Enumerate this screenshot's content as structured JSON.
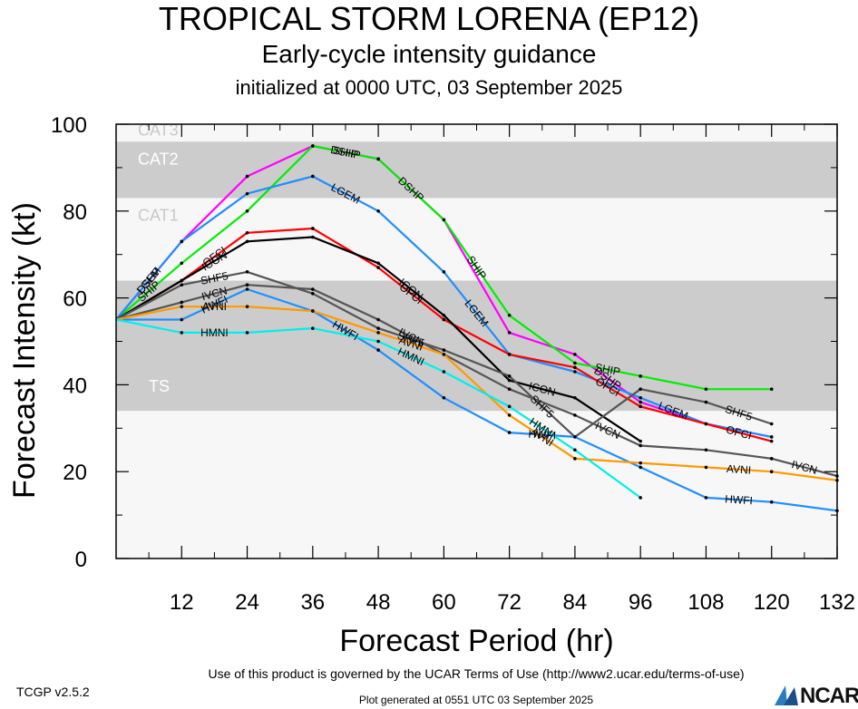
{
  "chart_data": {
    "type": "line",
    "title": "TROPICAL STORM LORENA (EP12)",
    "subtitle": "Early-cycle intensity guidance",
    "subtitle2": "initialized at 0000 UTC, 03 September 2025",
    "xlabel": "Forecast Period (hr)",
    "ylabel": "Forecast Intensity (kt)",
    "xlim": [
      0,
      132
    ],
    "ylim": [
      0,
      100
    ],
    "xticks": [
      12,
      24,
      36,
      48,
      60,
      72,
      84,
      96,
      108,
      120,
      132
    ],
    "yticks": [
      0,
      20,
      40,
      60,
      80,
      100
    ],
    "bands": [
      {
        "label": "TS",
        "from": 34,
        "to": 64,
        "color": "#cccccc"
      },
      {
        "label": "CAT1",
        "from": 64,
        "to": 83,
        "color": "#f7f7f7"
      },
      {
        "label": "CAT2",
        "from": 83,
        "to": 96,
        "color": "#cccccc"
      },
      {
        "label": "CAT3",
        "from": 96,
        "to": 100,
        "color": "#f7f7f7"
      }
    ],
    "below_band_color": "#f7f7f7",
    "series": [
      {
        "name": "DSHP",
        "color": "#ff00ff",
        "x": [
          0,
          12,
          24,
          36,
          48,
          60,
          72,
          84,
          96,
          108,
          120
        ],
        "y": [
          55,
          73,
          88,
          95,
          92,
          78,
          52,
          47,
          36,
          31,
          28
        ]
      },
      {
        "name": "SHIP",
        "color": "#00ee00",
        "x": [
          0,
          12,
          24,
          36,
          48,
          60,
          72,
          84,
          96,
          108,
          120
        ],
        "y": [
          55,
          68,
          80,
          95,
          92,
          78,
          56,
          45,
          42,
          39,
          39
        ]
      },
      {
        "name": "LGEM",
        "color": "#1e8fff",
        "x": [
          0,
          12,
          24,
          36,
          48,
          60,
          72,
          84,
          96,
          108,
          120
        ],
        "y": [
          55,
          73,
          84,
          88,
          80,
          66,
          47,
          43,
          37,
          31,
          28
        ]
      },
      {
        "name": "OFCI",
        "color": "#ff0000",
        "x": [
          0,
          12,
          24,
          36,
          48,
          60,
          72,
          84,
          96,
          108,
          120
        ],
        "y": [
          55,
          64,
          75,
          76,
          67,
          55,
          47,
          44,
          35,
          31,
          27
        ]
      },
      {
        "name": "ICON",
        "color": "#000000",
        "x": [
          0,
          12,
          24,
          36,
          48,
          60,
          72,
          84,
          96
        ],
        "y": [
          55,
          64,
          73,
          74,
          68,
          56,
          41,
          37,
          27
        ]
      },
      {
        "name": "SHF5",
        "color": "#555555",
        "x": [
          0,
          12,
          24,
          36,
          48,
          60,
          72,
          84,
          96,
          108,
          120
        ],
        "y": [
          55,
          63,
          66,
          61,
          53,
          48,
          42,
          28,
          39,
          36,
          31
        ]
      },
      {
        "name": "IVCN",
        "color": "#555555",
        "x": [
          0,
          12,
          24,
          36,
          48,
          60,
          72,
          84,
          96,
          108,
          120,
          132
        ],
        "y": [
          55,
          59,
          63,
          62,
          55,
          47,
          39,
          33,
          26,
          25,
          23,
          19
        ]
      },
      {
        "name": "HWFI",
        "color": "#1e8fff",
        "x": [
          0,
          12,
          24,
          36,
          48,
          60,
          72,
          84,
          96,
          108,
          120,
          132
        ],
        "y": [
          55,
          55,
          62,
          57,
          48,
          37,
          29,
          28,
          21,
          14,
          13,
          11
        ]
      },
      {
        "name": "AVNI",
        "color": "#ff9900",
        "x": [
          0,
          12,
          24,
          36,
          48,
          60,
          72,
          84,
          96,
          108,
          120,
          132
        ],
        "y": [
          55,
          58,
          58,
          57,
          52,
          47,
          33,
          23,
          22,
          21,
          20,
          18
        ]
      },
      {
        "name": "HMNI",
        "color": "#00eeee",
        "x": [
          0,
          12,
          24,
          36,
          48,
          60,
          72,
          84,
          96
        ],
        "y": [
          55,
          52,
          52,
          53,
          50,
          43,
          35,
          25,
          14
        ]
      }
    ]
  },
  "footer": {
    "terms": "Use of this product is governed by the UCAR Terms of Use (http://www2.ucar.edu/terms-of-use)",
    "version": "TCGP v2.5.2",
    "generated": "Plot generated at 0551 UTC   03 September 2025",
    "logo_text": "NCAR"
  }
}
